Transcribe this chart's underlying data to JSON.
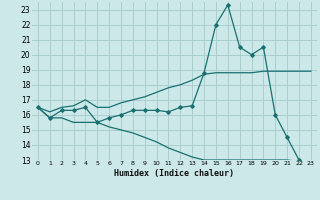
{
  "xlabel": "Humidex (Indice chaleur)",
  "bg_color": "#cce8e8",
  "grid_color": "#aacfcf",
  "line_color": "#1a7070",
  "x": [
    0,
    1,
    2,
    3,
    4,
    5,
    6,
    7,
    8,
    9,
    10,
    11,
    12,
    13,
    14,
    15,
    16,
    17,
    18,
    19,
    20,
    21,
    22,
    23
  ],
  "y_main": [
    16.5,
    15.8,
    16.3,
    16.3,
    16.5,
    15.5,
    15.8,
    16.0,
    16.3,
    16.3,
    16.3,
    16.2,
    16.5,
    16.6,
    18.8,
    22.0,
    23.3,
    20.5,
    20.0,
    20.5,
    16.0,
    14.5,
    13.0,
    12.7
  ],
  "y_upper": [
    16.5,
    16.2,
    16.5,
    16.6,
    17.0,
    16.5,
    16.5,
    16.8,
    17.0,
    17.2,
    17.5,
    17.8,
    18.0,
    18.3,
    18.7,
    18.8,
    18.8,
    18.8,
    18.8,
    18.9,
    18.9,
    18.9,
    18.9,
    18.9
  ],
  "y_lower": [
    16.5,
    15.8,
    15.8,
    15.5,
    15.5,
    15.5,
    15.2,
    15.0,
    14.8,
    14.5,
    14.2,
    13.8,
    13.5,
    13.2,
    13.0,
    13.0,
    13.0,
    13.0,
    13.0,
    13.0,
    13.0,
    13.0,
    12.9,
    12.7
  ],
  "ylim": [
    13,
    23.5
  ],
  "xlim": [
    -0.5,
    23.5
  ],
  "yticks": [
    13,
    14,
    15,
    16,
    17,
    18,
    19,
    20,
    21,
    22,
    23
  ],
  "xticks": [
    0,
    1,
    2,
    3,
    4,
    5,
    6,
    7,
    8,
    9,
    10,
    11,
    12,
    13,
    14,
    15,
    16,
    17,
    18,
    19,
    20,
    21,
    22,
    23
  ]
}
